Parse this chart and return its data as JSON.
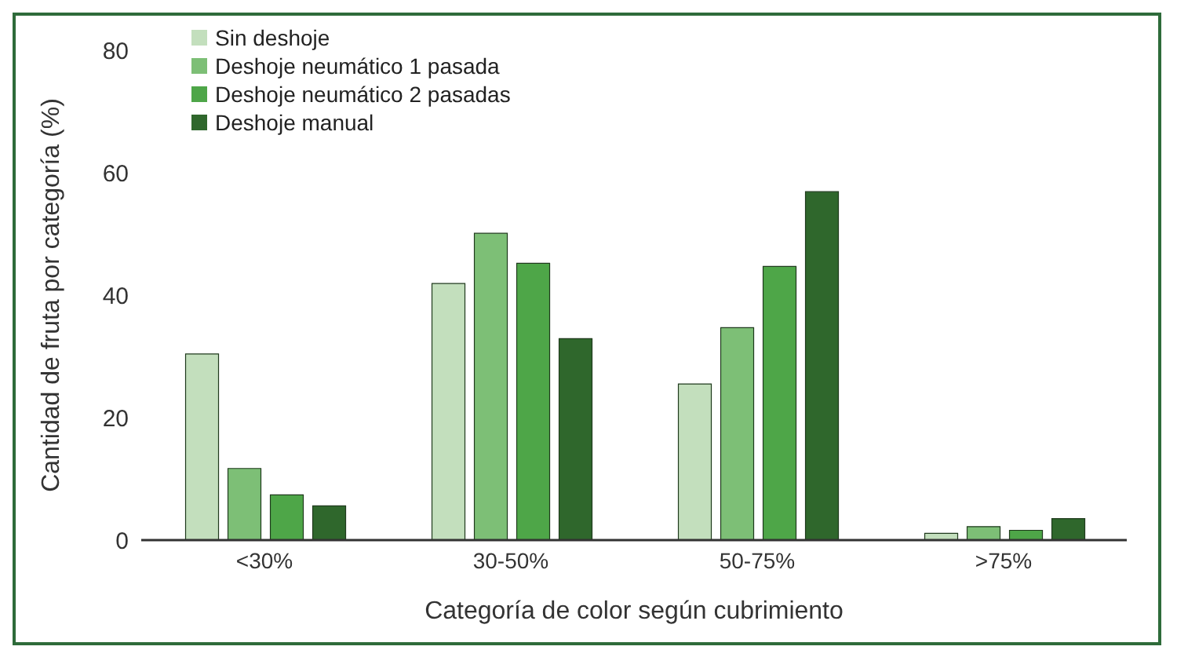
{
  "chart_data": {
    "type": "bar",
    "xlabel": "Categoría de color según cubrimiento",
    "ylabel": "Cantidad de fruta por categoría (%)",
    "categories": [
      "<30%",
      "30-50%",
      "50-75%",
      ">75%"
    ],
    "series": [
      {
        "name": "Sin deshoje",
        "color": "#c3dfbd",
        "values": [
          30.4,
          41.9,
          25.5,
          1.1
        ]
      },
      {
        "name": "Deshoje neumático 1 pasada",
        "color": "#7dbf76",
        "values": [
          11.7,
          50.1,
          34.7,
          2.2
        ]
      },
      {
        "name": "Deshoje neumático 2 pasadas",
        "color": "#4ea648",
        "values": [
          7.4,
          45.2,
          44.7,
          1.6
        ]
      },
      {
        "name": "Deshoje manual",
        "color": "#2f672c",
        "values": [
          5.6,
          32.9,
          56.9,
          3.5
        ]
      }
    ],
    "ylim": [
      0,
      80
    ],
    "yticks": [
      0,
      20,
      40,
      60,
      80
    ],
    "grid": false,
    "legend": "top left"
  }
}
